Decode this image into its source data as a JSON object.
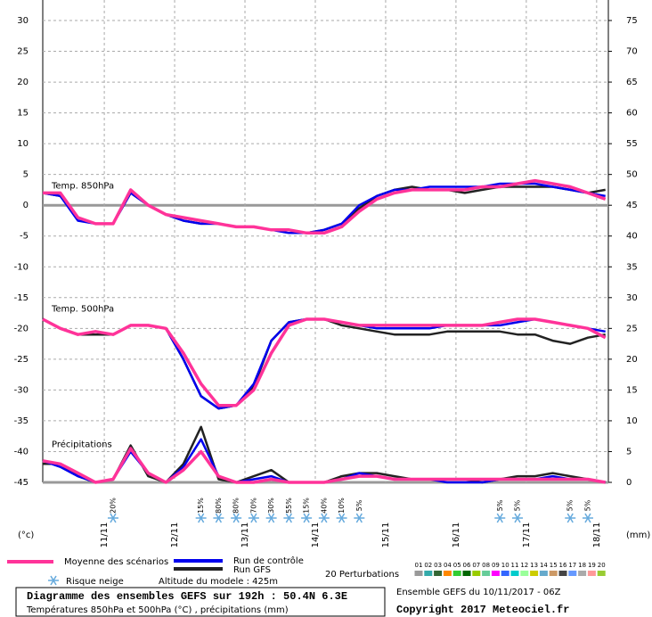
{
  "chart_data": {
    "type": "line",
    "x": [
      0,
      6,
      12,
      18,
      24,
      30,
      36,
      42,
      48,
      54,
      60,
      66,
      72,
      78,
      84,
      90,
      96,
      102,
      108,
      114,
      120,
      126,
      132,
      138,
      144,
      150,
      156,
      162,
      168,
      174,
      180,
      186,
      192
    ],
    "xlim": [
      0,
      193
    ],
    "xticks": [
      {
        "value": 21,
        "label": "11/11"
      },
      {
        "value": 45,
        "label": "12/11"
      },
      {
        "value": 69,
        "label": "13/11"
      },
      {
        "value": 93,
        "label": "14/11"
      },
      {
        "value": 117,
        "label": "15/11"
      },
      {
        "value": 141,
        "label": "16/11"
      },
      {
        "value": 165,
        "label": "17/11"
      },
      {
        "value": 189,
        "label": "18/11"
      }
    ],
    "ylim": [
      -45,
      30
    ],
    "yticks": [
      -45,
      -40,
      -35,
      -30,
      -25,
      -20,
      -15,
      -10,
      -5,
      0,
      5,
      10,
      15,
      20,
      25,
      30
    ],
    "y2lim": [
      0,
      75
    ],
    "y2ticks": [
      0,
      5,
      10,
      15,
      20,
      25,
      30,
      35,
      40,
      45,
      50,
      55,
      60,
      65,
      70,
      75
    ],
    "y_unit": "(°c)",
    "y2_unit": "(mm)",
    "grid": true,
    "panel_labels": [
      "Temp. 850hPa",
      "Temp. 500hPa",
      "Précipitations"
    ],
    "panel_axes": [
      "y",
      "y",
      "y2"
    ],
    "series": [
      {
        "name": "Moyenne des scénarios",
        "color": "#ff3399",
        "values": [
          [
            2,
            2,
            -2,
            -3,
            -3,
            2.5,
            0,
            -1.5,
            -2,
            -2.5,
            -3,
            -3.5,
            -3.5,
            -4,
            -4,
            -4.5,
            -4.5,
            -3.5,
            -1,
            1,
            2,
            2.5,
            2.5,
            2.5,
            2.5,
            3,
            3,
            3.5,
            4,
            3.5,
            3,
            2,
            1
          ],
          [
            -18.5,
            -20,
            -21,
            -20.5,
            -21,
            -19.5,
            -19.5,
            -20,
            -24,
            -29,
            -32.5,
            -32.5,
            -30,
            -24,
            -19.5,
            -18.5,
            -18.5,
            -19,
            -19.5,
            -19.5,
            -19.5,
            -19.5,
            -19.5,
            -19.5,
            -19.5,
            -19.5,
            -19,
            -18.5,
            -18.5,
            -19,
            -19.5,
            -20,
            -21.5
          ],
          [
            3.5,
            3,
            1.5,
            0,
            0.5,
            5.5,
            1.5,
            0,
            2,
            5,
            1,
            0,
            0,
            0.5,
            0,
            0,
            0,
            0.5,
            1,
            1,
            0.5,
            0.5,
            0.5,
            0.5,
            0.5,
            0.5,
            0.5,
            0.5,
            0.5,
            0.5,
            0.5,
            0.5,
            0
          ]
        ]
      },
      {
        "name": "Run de contrôle",
        "color": "#0000ee",
        "values": [
          [
            2,
            1.5,
            -2.5,
            -3,
            -3,
            2,
            0,
            -1.5,
            -2.5,
            -3,
            -3,
            -3.5,
            -3.5,
            -4,
            -4.5,
            -4.5,
            -4,
            -3,
            0,
            1.5,
            2.5,
            2.5,
            3,
            3,
            3,
            3,
            3.5,
            3.5,
            3.5,
            3,
            2.5,
            2,
            1.5
          ],
          [
            -18.5,
            -20,
            -21,
            -20.5,
            -21,
            -19.5,
            -19.5,
            -20,
            -25,
            -31,
            -33,
            -32.5,
            -29,
            -22,
            -19,
            -18.5,
            -18.5,
            -19,
            -19.5,
            -20,
            -20,
            -20,
            -20,
            -19.5,
            -19.5,
            -19.5,
            -19.5,
            -19,
            -18.5,
            -19,
            -19.5,
            -20,
            -20.5
          ],
          [
            3.5,
            2.5,
            1,
            0,
            0.5,
            5,
            1.5,
            0,
            2.5,
            7,
            1,
            0,
            0.5,
            1,
            0,
            0,
            0,
            0.5,
            1.5,
            1,
            0.5,
            0.5,
            0.5,
            0,
            0,
            0,
            0.5,
            0.5,
            0.5,
            1,
            0.5,
            0.5,
            0
          ]
        ]
      },
      {
        "name": "Run GFS",
        "color": "#222222",
        "values": [
          [
            2,
            1.5,
            -2,
            -3,
            -3,
            2,
            0,
            -1.5,
            -2.5,
            -3,
            -3,
            -3.5,
            -3.5,
            -4,
            -4,
            -4.5,
            -4,
            -3,
            -0.5,
            1.5,
            2.5,
            3,
            2.5,
            2.5,
            2,
            2.5,
            3,
            3,
            3,
            3,
            2.5,
            2,
            2.5
          ],
          [
            -18.5,
            -20,
            -21,
            -21,
            -21,
            -19.5,
            -19.5,
            -20,
            -25,
            -31,
            -33,
            -32.5,
            -29.5,
            -22,
            -19,
            -18.5,
            -18.5,
            -19.5,
            -20,
            -20.5,
            -21,
            -21,
            -21,
            -20.5,
            -20.5,
            -20.5,
            -20.5,
            -21,
            -21,
            -22,
            -22.5,
            -21.5,
            -21
          ],
          [
            3,
            3,
            1,
            0,
            0.5,
            6,
            1,
            0,
            3,
            9,
            0.5,
            0,
            1,
            2,
            0,
            0,
            0,
            1,
            1.5,
            1.5,
            1,
            0.5,
            0.5,
            0.5,
            0.5,
            0,
            0.5,
            1,
            1,
            1.5,
            1,
            0.5,
            0
          ]
        ]
      }
    ],
    "snow_risk": {
      "label": "Risque neige",
      "x": [
        24,
        54,
        60,
        66,
        72,
        78,
        84,
        90,
        96,
        102,
        108,
        156,
        162,
        180,
        186
      ],
      "values": [
        20,
        15,
        80,
        80,
        70,
        30,
        55,
        15,
        40,
        10,
        5,
        5,
        5,
        5,
        5
      ],
      "value_labels": [
        "20%",
        "15%",
        "80%",
        "80%",
        "70%",
        "30%",
        "55%",
        "15%",
        "40%",
        "10%",
        "5%",
        "5%",
        "5%",
        "5%",
        "5%"
      ]
    },
    "altitude": "Altitude du modele : 425m",
    "perturbations": {
      "label": "20 Perturbations",
      "names": [
        "01",
        "02",
        "03",
        "04",
        "05",
        "06",
        "07",
        "08",
        "09",
        "10",
        "11",
        "12",
        "13",
        "14",
        "15",
        "16",
        "17",
        "18",
        "19",
        "20"
      ],
      "colors": [
        "#999999",
        "#33aaaa",
        "#336633",
        "#ff8800",
        "#33cc33",
        "#006600",
        "#99cc00",
        "#66cc99",
        "#ff00ff",
        "#3366ff",
        "#00cccc",
        "#99ff99",
        "#cccc00",
        "#66aacc",
        "#cc9966",
        "#444444",
        "#6699ff",
        "#aaaaaa",
        "#ff9999",
        "#99cc33"
      ]
    },
    "title": "Diagramme des ensembles GEFS sur 192h : 50.4N 6.3E",
    "subtitle": "Températures 850hPa et 500hPa (°C) , précipitations (mm)",
    "run_info": "Ensemble GEFS du 10/11/2017 - 06Z",
    "copyright": "Copyright 2017 Meteociel.fr"
  }
}
